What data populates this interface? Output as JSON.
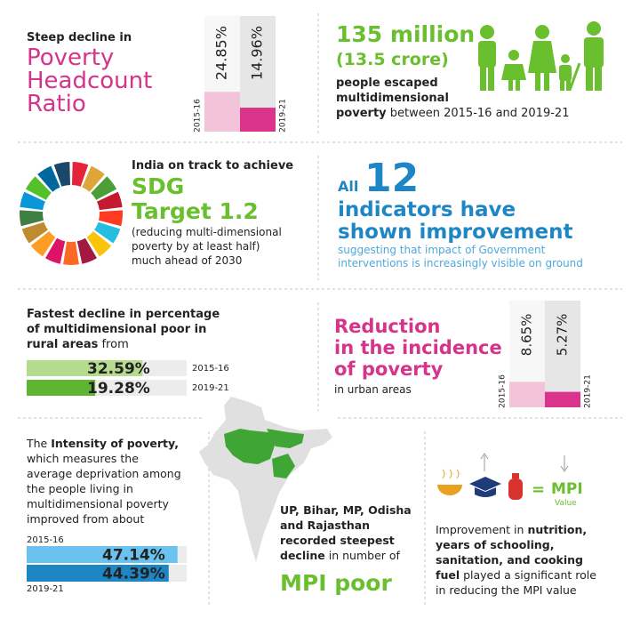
{
  "headcount": {
    "intro": "Steep decline in",
    "title_lines": [
      "Poverty",
      "Headcount",
      "Ratio"
    ],
    "years": [
      "2015-16",
      "2019-21"
    ],
    "values": [
      24.85,
      14.96
    ],
    "value_labels": [
      "24.85%",
      "14.96%"
    ]
  },
  "escaped": {
    "headline": "135 million",
    "sub": "(13.5 crore)",
    "lines": [
      "people escaped",
      "multidimensional",
      "poverty"
    ],
    "tail": " between 2015-16 and 2019-21"
  },
  "sdg": {
    "intro": "India on track to achieve",
    "title_lines": [
      "SDG",
      "Target 1.2"
    ],
    "note_lines": [
      "(reducing multi-dimensional",
      "poverty by at least half)",
      "much ahead of 2030"
    ]
  },
  "indicators": {
    "all": "All",
    "count": "12",
    "title_lines": [
      "indicators have",
      "shown improvement"
    ],
    "note_lines": [
      "suggesting that impact of Government",
      "interventions is increasingly visible on ground"
    ]
  },
  "rural": {
    "lines": [
      "Fastest decline in percentage",
      "of multidimensional poor in",
      "rural areas"
    ],
    "tail": " from",
    "years": [
      "2015-16",
      "2019-21"
    ],
    "values": [
      32.59,
      19.28
    ],
    "value_labels": [
      "32.59%",
      "19.28%"
    ]
  },
  "urban": {
    "title_lines": [
      "Reduction",
      "in the incidence",
      "of poverty"
    ],
    "note": "in urban areas",
    "years": [
      "2015-16",
      "2019-21"
    ],
    "values": [
      8.65,
      5.27
    ],
    "value_labels": [
      "8.65%",
      "5.27%"
    ]
  },
  "intensity": {
    "lead": "The ",
    "bold": "Intensity of poverty,",
    "lines": [
      "which measures the",
      "average deprivation among",
      "the people living in",
      "multidimensional poverty",
      "improved from about"
    ],
    "years": [
      "2015-16",
      "2019-21"
    ],
    "values": [
      47.14,
      44.39
    ],
    "value_labels": [
      "47.14%",
      "44.39%"
    ]
  },
  "states": {
    "lines": [
      "UP, Bihar, MP, Odisha",
      "and Rajasthan",
      "recorded steepest",
      "decline"
    ],
    "tail": " in number of",
    "headline": "MPI poor"
  },
  "mpi": {
    "eq": "=",
    "label": "MPI",
    "sub": "Value",
    "lead": "Improvement in ",
    "bold_lines": [
      "nutrition,",
      "years of schooling,",
      "sanitation, and cooking",
      "fuel"
    ],
    "tail": " played a significant role",
    "last": "in reducing the MPI value"
  }
}
